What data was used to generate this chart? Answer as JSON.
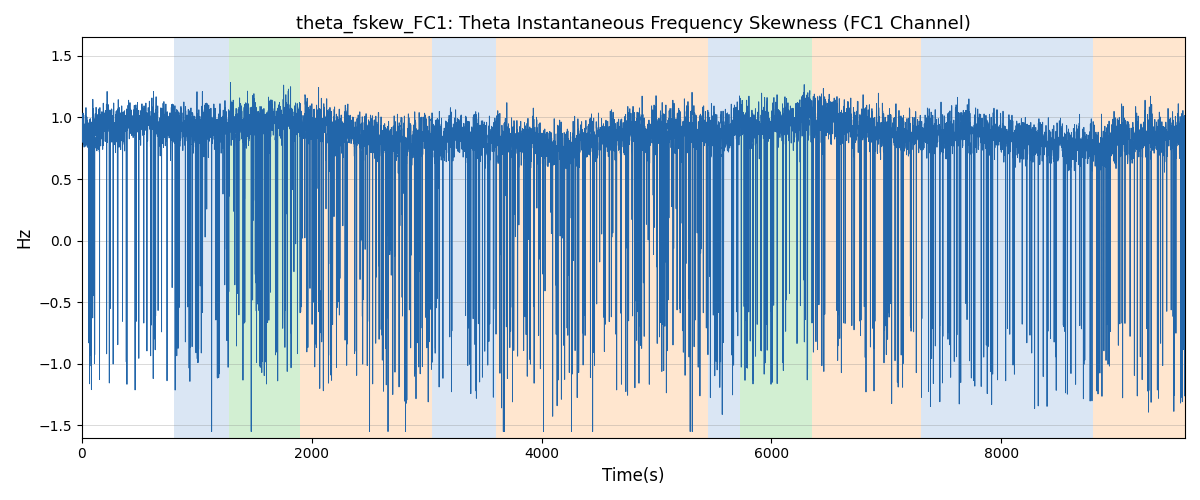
{
  "title": "theta_fskew_FC1: Theta Instantaneous Frequency Skewness (FC1 Channel)",
  "xlabel": "Time(s)",
  "ylabel": "Hz",
  "xlim": [
    0,
    9600
  ],
  "ylim": [
    -1.6,
    1.65
  ],
  "yticks": [
    -1.5,
    -1.0,
    -0.5,
    0.0,
    0.5,
    1.0,
    1.5
  ],
  "xticks": [
    0,
    2000,
    4000,
    6000,
    8000
  ],
  "line_color": "#2266aa",
  "bg_color": "#ffffff",
  "regions": [
    {
      "start": 800,
      "end": 1280,
      "color": "#aec8e8",
      "alpha": 0.45
    },
    {
      "start": 1280,
      "end": 1900,
      "color": "#90d890",
      "alpha": 0.4
    },
    {
      "start": 1900,
      "end": 3050,
      "color": "#ffc896",
      "alpha": 0.45
    },
    {
      "start": 3050,
      "end": 3600,
      "color": "#aec8e8",
      "alpha": 0.45
    },
    {
      "start": 3600,
      "end": 5450,
      "color": "#ffc896",
      "alpha": 0.45
    },
    {
      "start": 5450,
      "end": 5730,
      "color": "#aec8e8",
      "alpha": 0.45
    },
    {
      "start": 5730,
      "end": 6350,
      "color": "#90d890",
      "alpha": 0.4
    },
    {
      "start": 6350,
      "end": 7300,
      "color": "#ffc896",
      "alpha": 0.45
    },
    {
      "start": 7300,
      "end": 8800,
      "color": "#aec8e8",
      "alpha": 0.45
    },
    {
      "start": 8800,
      "end": 9600,
      "color": "#ffc896",
      "alpha": 0.45
    }
  ],
  "seed": 17,
  "n_points": 9500
}
